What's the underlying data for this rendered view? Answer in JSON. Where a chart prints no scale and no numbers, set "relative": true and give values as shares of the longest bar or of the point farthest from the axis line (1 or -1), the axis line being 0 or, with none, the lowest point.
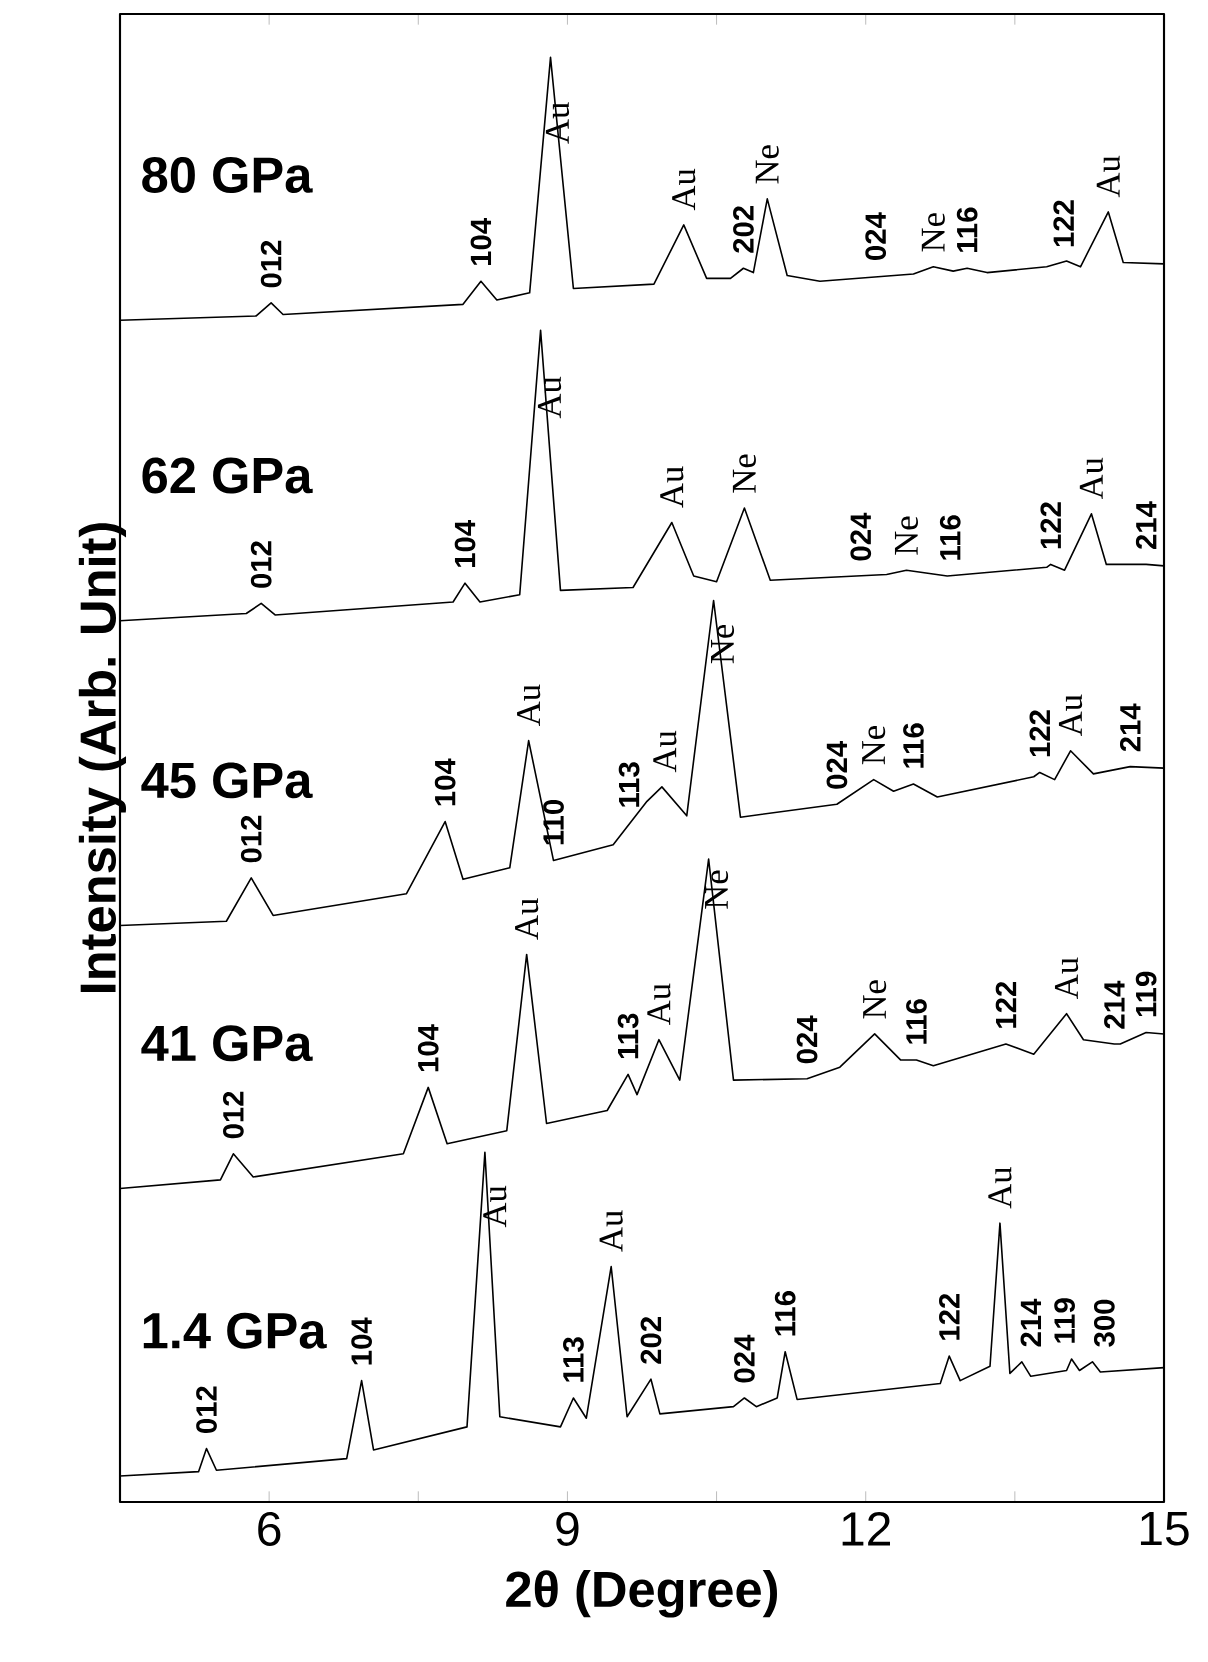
{
  "chart_data": {
    "type": "line",
    "relative": true,
    "xlabel": "2θ (Degree)",
    "ylabel": "Intensity (Arb. Unit)",
    "xlim": [
      4.5,
      15
    ],
    "xticks": [
      6,
      {
        "value": 7.5,
        "label": null
      },
      9,
      {
        "value": 10.5,
        "label": null
      },
      12,
      {
        "value": 13.5,
        "label": null
      },
      15
    ],
    "marker": "none",
    "line_style": "solid",
    "series": [
      {
        "name": "80 GPa",
        "color": "#000000",
        "x": [
          4.5,
          5.87,
          6.02,
          6.14,
          7.95,
          8.13,
          8.29,
          8.62,
          8.83,
          9.06,
          9.87,
          10.17,
          10.4,
          10.64,
          10.77,
          10.87,
          11.01,
          11.21,
          11.54,
          12.48,
          12.68,
          12.88,
          13.02,
          13.22,
          13.82,
          14.02,
          14.16,
          14.44,
          14.59,
          15
        ],
        "values": [
          0.818,
          0.821,
          0.83,
          0.822,
          0.829,
          0.845,
          0.832,
          0.837,
          1.0,
          0.84,
          0.843,
          0.884,
          0.847,
          0.847,
          0.854,
          0.851,
          0.902,
          0.849,
          0.845,
          0.85,
          0.855,
          0.852,
          0.854,
          0.851,
          0.855,
          0.859,
          0.855,
          0.893,
          0.858,
          0.857
        ]
      },
      {
        "name": "62 GPa",
        "color": "#000000",
        "x": [
          4.5,
          5.77,
          5.92,
          6.06,
          7.85,
          7.97,
          8.12,
          8.52,
          8.73,
          8.93,
          9.66,
          10.05,
          10.27,
          10.5,
          10.78,
          11.04,
          12.21,
          12.41,
          12.82,
          13.82,
          13.86,
          14.0,
          14.27,
          14.42,
          14.82,
          15
        ],
        "values": [
          0.61,
          0.615,
          0.622,
          0.614,
          0.623,
          0.636,
          0.623,
          0.628,
          0.811,
          0.631,
          0.633,
          0.678,
          0.641,
          0.637,
          0.688,
          0.638,
          0.642,
          0.645,
          0.641,
          0.647,
          0.649,
          0.645,
          0.684,
          0.649,
          0.649,
          0.648
        ]
      },
      {
        "name": "45 GPa",
        "color": "#000000",
        "x": [
          4.5,
          5.57,
          5.82,
          6.04,
          7.38,
          7.77,
          7.95,
          8.42,
          8.61,
          8.86,
          9.46,
          9.8,
          9.95,
          10.2,
          10.47,
          10.74,
          11.71,
          12.08,
          12.28,
          12.48,
          12.72,
          13.69,
          13.75,
          13.9,
          14.06,
          14.29,
          14.66,
          15
        ],
        "values": [
          0.399,
          0.402,
          0.432,
          0.406,
          0.421,
          0.471,
          0.431,
          0.439,
          0.527,
          0.444,
          0.455,
          0.485,
          0.495,
          0.475,
          0.624,
          0.474,
          0.483,
          0.5,
          0.492,
          0.497,
          0.488,
          0.502,
          0.505,
          0.5,
          0.52,
          0.504,
          0.509,
          0.508
        ]
      },
      {
        "name": "41 GPa",
        "color": "#000000",
        "x": [
          4.5,
          5.51,
          5.64,
          5.84,
          7.35,
          7.6,
          7.79,
          8.39,
          8.59,
          8.79,
          9.4,
          9.61,
          9.7,
          9.92,
          10.13,
          10.42,
          10.67,
          11.41,
          11.74,
          12.09,
          12.35,
          12.51,
          12.68,
          13.41,
          13.69,
          14.02,
          14.19,
          14.5,
          14.56,
          14.82,
          15
        ],
        "values": [
          0.217,
          0.223,
          0.241,
          0.225,
          0.241,
          0.287,
          0.248,
          0.257,
          0.379,
          0.262,
          0.271,
          0.296,
          0.282,
          0.32,
          0.292,
          0.445,
          0.292,
          0.293,
          0.301,
          0.324,
          0.306,
          0.306,
          0.302,
          0.317,
          0.31,
          0.338,
          0.32,
          0.317,
          0.317,
          0.325,
          0.324
        ]
      },
      {
        "name": "1.4 GPa",
        "color": "#000000",
        "x": [
          4.5,
          5.29,
          5.37,
          5.47,
          6.78,
          6.93,
          7.05,
          7.99,
          8.17,
          8.32,
          8.93,
          9.06,
          9.19,
          9.44,
          9.6,
          9.84,
          9.93,
          10.67,
          10.78,
          10.9,
          11.11,
          11.19,
          11.31,
          12.75,
          12.84,
          12.95,
          13.25,
          13.35,
          13.45,
          13.57,
          13.66,
          14.02,
          14.07,
          14.15,
          14.28,
          14.36,
          15
        ],
        "values": [
          0.018,
          0.021,
          0.037,
          0.022,
          0.03,
          0.084,
          0.036,
          0.052,
          0.242,
          0.059,
          0.052,
          0.072,
          0.058,
          0.163,
          0.059,
          0.085,
          0.061,
          0.066,
          0.072,
          0.066,
          0.072,
          0.104,
          0.071,
          0.082,
          0.101,
          0.084,
          0.094,
          0.193,
          0.089,
          0.097,
          0.087,
          0.091,
          0.099,
          0.091,
          0.097,
          0.09,
          0.093
        ]
      }
    ],
    "annotations": [
      {
        "text": "012",
        "x": 6.02,
        "y": 0.83
      },
      {
        "text": "104",
        "x": 8.13,
        "y": 0.845
      },
      {
        "text": "Au",
        "x": 8.9,
        "y": 0.93
      },
      {
        "text": "Au",
        "x": 10.17,
        "y": 0.884
      },
      {
        "text": "202",
        "x": 10.77,
        "y": 0.854
      },
      {
        "text": "Ne",
        "x": 11.01,
        "y": 0.902
      },
      {
        "text": "024",
        "x": 12.1,
        "y": 0.849
      },
      {
        "text": "Ne",
        "x": 12.68,
        "y": 0.855
      },
      {
        "text": "116",
        "x": 13.02,
        "y": 0.854
      },
      {
        "text": "122",
        "x": 13.99,
        "y": 0.858
      },
      {
        "text": "Au",
        "x": 14.44,
        "y": 0.893
      },
      {
        "text": "012",
        "x": 5.92,
        "y": 0.622
      },
      {
        "text": "104",
        "x": 7.97,
        "y": 0.636
      },
      {
        "text": "Au",
        "x": 8.82,
        "y": 0.74
      },
      {
        "text": "Au",
        "x": 10.05,
        "y": 0.678
      },
      {
        "text": "Ne",
        "x": 10.78,
        "y": 0.688
      },
      {
        "text": "024",
        "x": 11.95,
        "y": 0.641
      },
      {
        "text": "Ne",
        "x": 12.41,
        "y": 0.645
      },
      {
        "text": "116",
        "x": 12.85,
        "y": 0.641
      },
      {
        "text": "122",
        "x": 13.86,
        "y": 0.649
      },
      {
        "text": "Au",
        "x": 14.27,
        "y": 0.684
      },
      {
        "text": "214",
        "x": 14.82,
        "y": 0.649
      },
      {
        "text": "012",
        "x": 5.82,
        "y": 0.432
      },
      {
        "text": "104",
        "x": 7.77,
        "y": 0.471
      },
      {
        "text": "Au",
        "x": 8.61,
        "y": 0.527
      },
      {
        "text": "110",
        "x": 8.86,
        "y": 0.444
      },
      {
        "text": "113",
        "x": 9.62,
        "y": 0.47
      },
      {
        "text": "Au",
        "x": 9.98,
        "y": 0.495
      },
      {
        "text": "Ne",
        "x": 10.56,
        "y": 0.57
      },
      {
        "text": "024",
        "x": 11.71,
        "y": 0.483
      },
      {
        "text": "Ne",
        "x": 12.08,
        "y": 0.5
      },
      {
        "text": "116",
        "x": 12.48,
        "y": 0.497
      },
      {
        "text": "122",
        "x": 13.75,
        "y": 0.505
      },
      {
        "text": "Au",
        "x": 14.06,
        "y": 0.52
      },
      {
        "text": "214",
        "x": 14.66,
        "y": 0.509
      },
      {
        "text": "012",
        "x": 5.64,
        "y": 0.241
      },
      {
        "text": "104",
        "x": 7.6,
        "y": 0.287
      },
      {
        "text": "Au",
        "x": 8.59,
        "y": 0.379
      },
      {
        "text": "113",
        "x": 9.61,
        "y": 0.296
      },
      {
        "text": "Au",
        "x": 9.92,
        "y": 0.32
      },
      {
        "text": "Ne",
        "x": 10.5,
        "y": 0.4
      },
      {
        "text": "024",
        "x": 11.41,
        "y": 0.293
      },
      {
        "text": "Ne",
        "x": 12.09,
        "y": 0.324
      },
      {
        "text": "116",
        "x": 12.51,
        "y": 0.306
      },
      {
        "text": "122",
        "x": 13.41,
        "y": 0.317
      },
      {
        "text": "Au",
        "x": 14.02,
        "y": 0.338
      },
      {
        "text": "214",
        "x": 14.5,
        "y": 0.317
      },
      {
        "text": "119",
        "x": 14.82,
        "y": 0.325
      },
      {
        "text": "012",
        "x": 5.37,
        "y": 0.037
      },
      {
        "text": "104",
        "x": 6.93,
        "y": 0.084
      },
      {
        "text": "Au",
        "x": 8.27,
        "y": 0.18
      },
      {
        "text": "113",
        "x": 9.06,
        "y": 0.072
      },
      {
        "text": "Au",
        "x": 9.44,
        "y": 0.163
      },
      {
        "text": "202",
        "x": 9.84,
        "y": 0.085
      },
      {
        "text": "024",
        "x": 10.78,
        "y": 0.072
      },
      {
        "text": "116",
        "x": 11.19,
        "y": 0.104
      },
      {
        "text": "122",
        "x": 12.84,
        "y": 0.101
      },
      {
        "text": "Au",
        "x": 13.35,
        "y": 0.193
      },
      {
        "text": "214",
        "x": 13.66,
        "y": 0.097
      },
      {
        "text": "119",
        "x": 14.0,
        "y": 0.099
      },
      {
        "text": "300",
        "x": 14.4,
        "y": 0.097
      }
    ]
  }
}
